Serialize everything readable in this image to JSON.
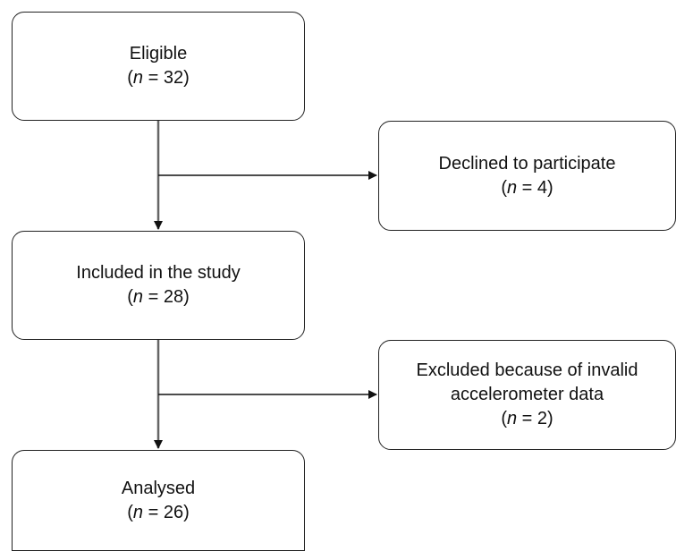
{
  "boxes": {
    "eligible": {
      "label": "Eligible",
      "count_prefix": "(",
      "n_symbol": "n",
      "count_value": " = 32)"
    },
    "declined": {
      "label": "Declined to participate",
      "count_prefix": "(",
      "n_symbol": "n",
      "count_value": " = 4)"
    },
    "included": {
      "label": "Included in the study",
      "count_prefix": "(",
      "n_symbol": "n",
      "count_value": " = 28)"
    },
    "excluded": {
      "label": "Excluded because of invalid accelerometer data",
      "count_prefix": "(",
      "n_symbol": "n",
      "count_value": " = 2)"
    },
    "analysed": {
      "label": "Analysed",
      "count_prefix": "(",
      "n_symbol": "n",
      "count_value": " = 26)"
    }
  },
  "colors": {
    "main_flow_line": "#666666",
    "side_branch_line": "#111111",
    "box_border": "#222222"
  }
}
